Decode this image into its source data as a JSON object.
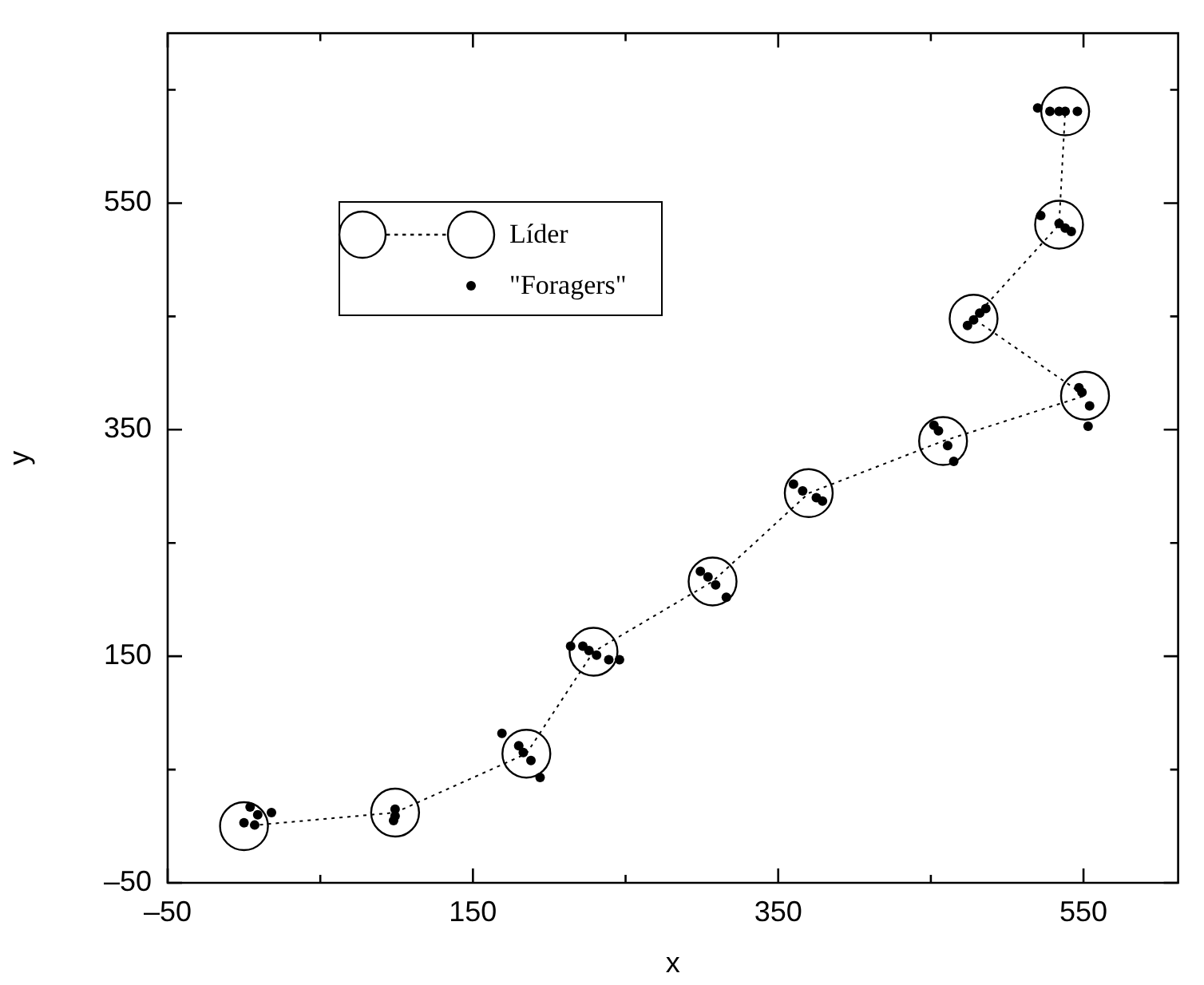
{
  "chart_data": {
    "type": "scatter",
    "xlabel": "x",
    "ylabel": "y",
    "xlim": [
      -50,
      612
    ],
    "ylim": [
      -50,
      700
    ],
    "xticks": [
      {
        "value": -50,
        "label": "–50"
      },
      {
        "value": 50,
        "label": null
      },
      150,
      {
        "value": 250,
        "label": null
      },
      350,
      {
        "value": 450,
        "label": null
      },
      550
    ],
    "yticks": [
      {
        "value": -50,
        "label": "–50"
      },
      {
        "value": 50,
        "label": null
      },
      150,
      {
        "value": 250,
        "label": null
      },
      350,
      {
        "value": 450,
        "label": null
      },
      550,
      {
        "value": 650,
        "label": null
      }
    ],
    "legend": "top left",
    "grid": false,
    "series": [
      {
        "name": "Líder",
        "type": "line",
        "color": "#000000",
        "marker": "circle",
        "line_style": "dotted",
        "x": [
          0,
          99,
          185,
          229,
          307,
          370,
          458,
          551,
          478,
          534,
          538
        ],
        "values": [
          0,
          12,
          64,
          154,
          216,
          294,
          340,
          380,
          448,
          531,
          631
        ]
      },
      {
        "name": "\"Foragers\"",
        "type": "scatter",
        "color": "#000000",
        "marker": "circle",
        "x": [
          4,
          9,
          0,
          7,
          18,
          99,
          99,
          98,
          169,
          180,
          183,
          188,
          194,
          214,
          222,
          226,
          231,
          239,
          246,
          299,
          304,
          309,
          316,
          360,
          366,
          375,
          379,
          452,
          455,
          461,
          465,
          547,
          549,
          554,
          553,
          474,
          478,
          482,
          486,
          522,
          534,
          538,
          542,
          520,
          528,
          534,
          538,
          546
        ],
        "values": [
          17,
          10,
          3,
          1,
          12,
          15,
          9,
          5,
          82,
          71,
          65,
          58,
          43,
          159,
          159,
          155,
          151,
          147,
          147,
          225,
          220,
          213,
          202,
          302,
          296,
          290,
          287,
          354,
          349,
          336,
          322,
          387,
          383,
          371,
          353,
          442,
          447,
          453,
          457,
          539,
          532,
          528,
          525,
          634,
          631,
          631,
          631,
          631
        ]
      }
    ]
  }
}
